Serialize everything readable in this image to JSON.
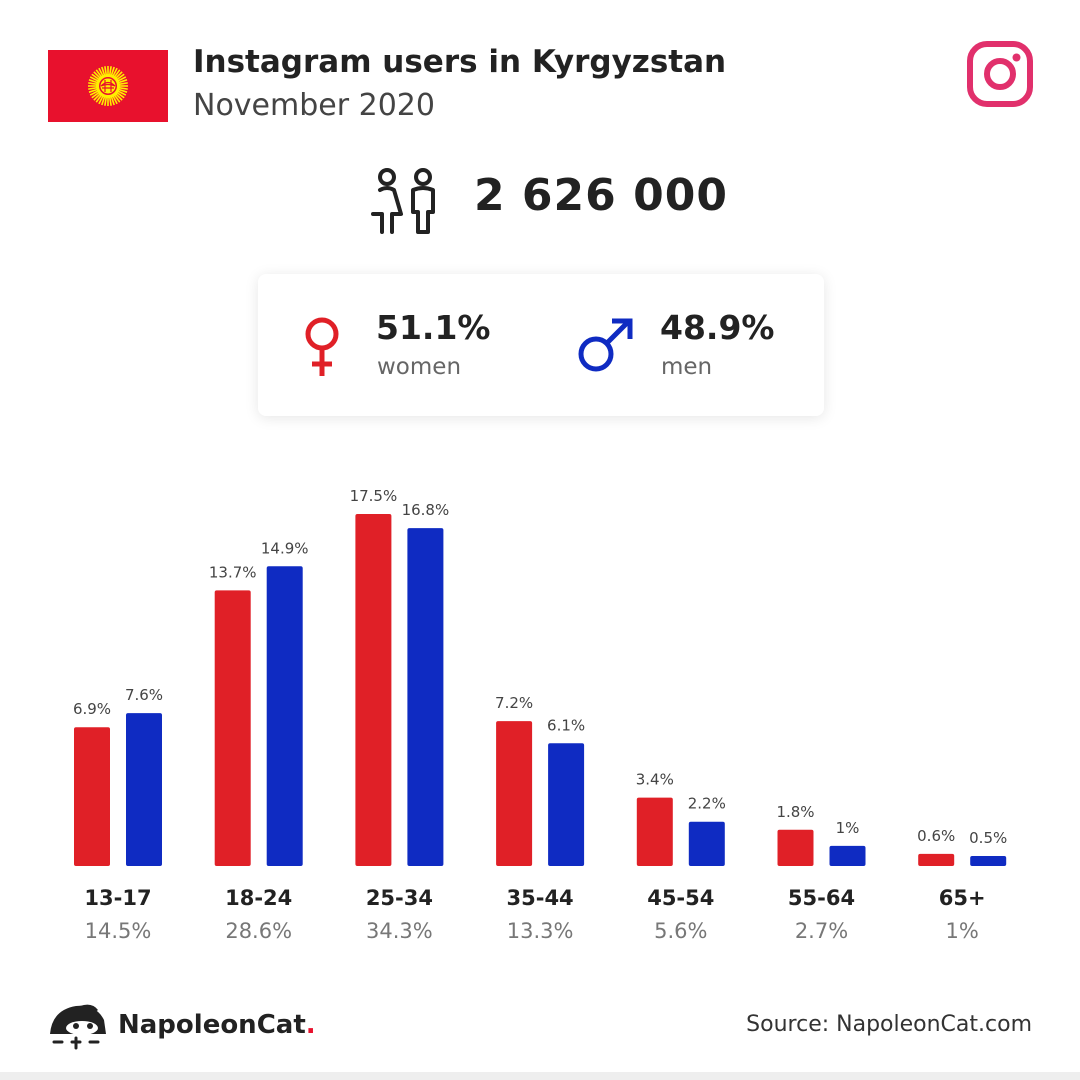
{
  "header": {
    "title": "Instagram users in Kyrgyzstan",
    "subtitle": "November 2020"
  },
  "icons": {
    "flag": "kyrgyzstan-flag-icon",
    "instagram": "instagram-logo-icon",
    "users": "people-icon",
    "female": "female-symbol-icon",
    "male": "male-symbol-icon",
    "brand": "napoleoncat-logo-icon"
  },
  "total": {
    "value": "2 626 000"
  },
  "gender": {
    "women": {
      "percent": "51.1%",
      "label": "women"
    },
    "men": {
      "percent": "48.9%",
      "label": "men"
    }
  },
  "colors": {
    "women": "#e02027",
    "men": "#0f2bc2",
    "flag_red": "#e8112d",
    "flag_sun": "#ffef00",
    "instagram": "#e1306c"
  },
  "chart_data": {
    "type": "bar",
    "categories": [
      "13-17",
      "18-24",
      "25-34",
      "35-44",
      "45-54",
      "55-64",
      "65+"
    ],
    "category_totals": [
      "14.5%",
      "28.6%",
      "34.3%",
      "13.3%",
      "5.6%",
      "2.7%",
      "1%"
    ],
    "series": [
      {
        "name": "women",
        "values": [
          6.9,
          13.7,
          17.5,
          7.2,
          3.4,
          1.8,
          0.6
        ],
        "labels": [
          "6.9%",
          "13.7%",
          "17.5%",
          "7.2%",
          "3.4%",
          "1.8%",
          "0.6%"
        ]
      },
      {
        "name": "men",
        "values": [
          7.6,
          14.9,
          16.8,
          6.1,
          2.2,
          1.0,
          0.5
        ],
        "labels": [
          "7.6%",
          "14.9%",
          "16.8%",
          "6.1%",
          "2.2%",
          "1%",
          "0.5%"
        ]
      }
    ],
    "ylim": [
      0,
      17.5
    ],
    "grid": false,
    "legend": "none"
  },
  "footer": {
    "brand_name": "NapoleonCat",
    "brand_dot": ".",
    "source": "Source: NapoleonCat.com"
  }
}
